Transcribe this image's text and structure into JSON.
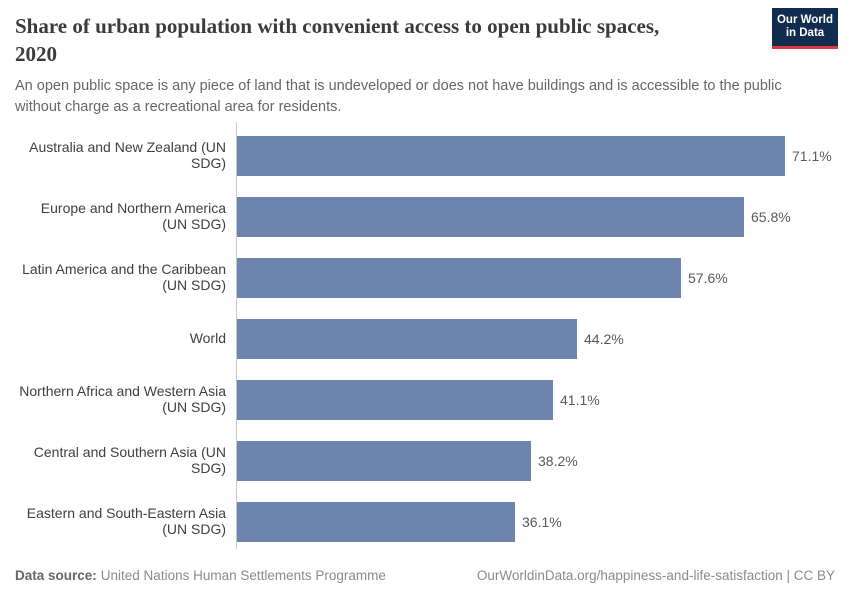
{
  "header": {
    "title": "Share of urban population with convenient access to open public spaces, 2020",
    "subtitle": "An open public space is any piece of land that is undeveloped or does not have buildings and is accessible to the public without charge as a recreational area for residents.",
    "logo": {
      "line1": "Our World",
      "line2": "in Data",
      "bg_color": "#102d50",
      "accent_color": "#e0373e"
    }
  },
  "chart_data": {
    "type": "bar",
    "orientation": "horizontal",
    "title": "Share of urban population with convenient access to open public spaces, 2020",
    "categories": [
      "Australia and New Zealand (UN SDG)",
      "Europe and Northern America (UN SDG)",
      "Latin America and the Caribbean (UN SDG)",
      "World",
      "Northern Africa and Western Asia (UN SDG)",
      "Central and Southern Asia (UN SDG)",
      "Eastern and South-Eastern Asia (UN SDG)"
    ],
    "values": [
      71.1,
      65.8,
      57.6,
      44.2,
      41.1,
      38.2,
      36.1
    ],
    "value_labels": [
      "71.1%",
      "65.8%",
      "57.6%",
      "44.2%",
      "41.1%",
      "38.2%",
      "36.1%"
    ],
    "unit": "%",
    "bar_color": "#6d85ad",
    "xlabel": "",
    "ylabel": "",
    "grid": false,
    "legend": "none",
    "value_labels_shown": true
  },
  "footer": {
    "datasource_label": "Data source:",
    "datasource_value": "United Nations Human Settlements Programme",
    "link_text": "OurWorldinData.org/happiness-and-life-satisfaction | CC BY"
  }
}
